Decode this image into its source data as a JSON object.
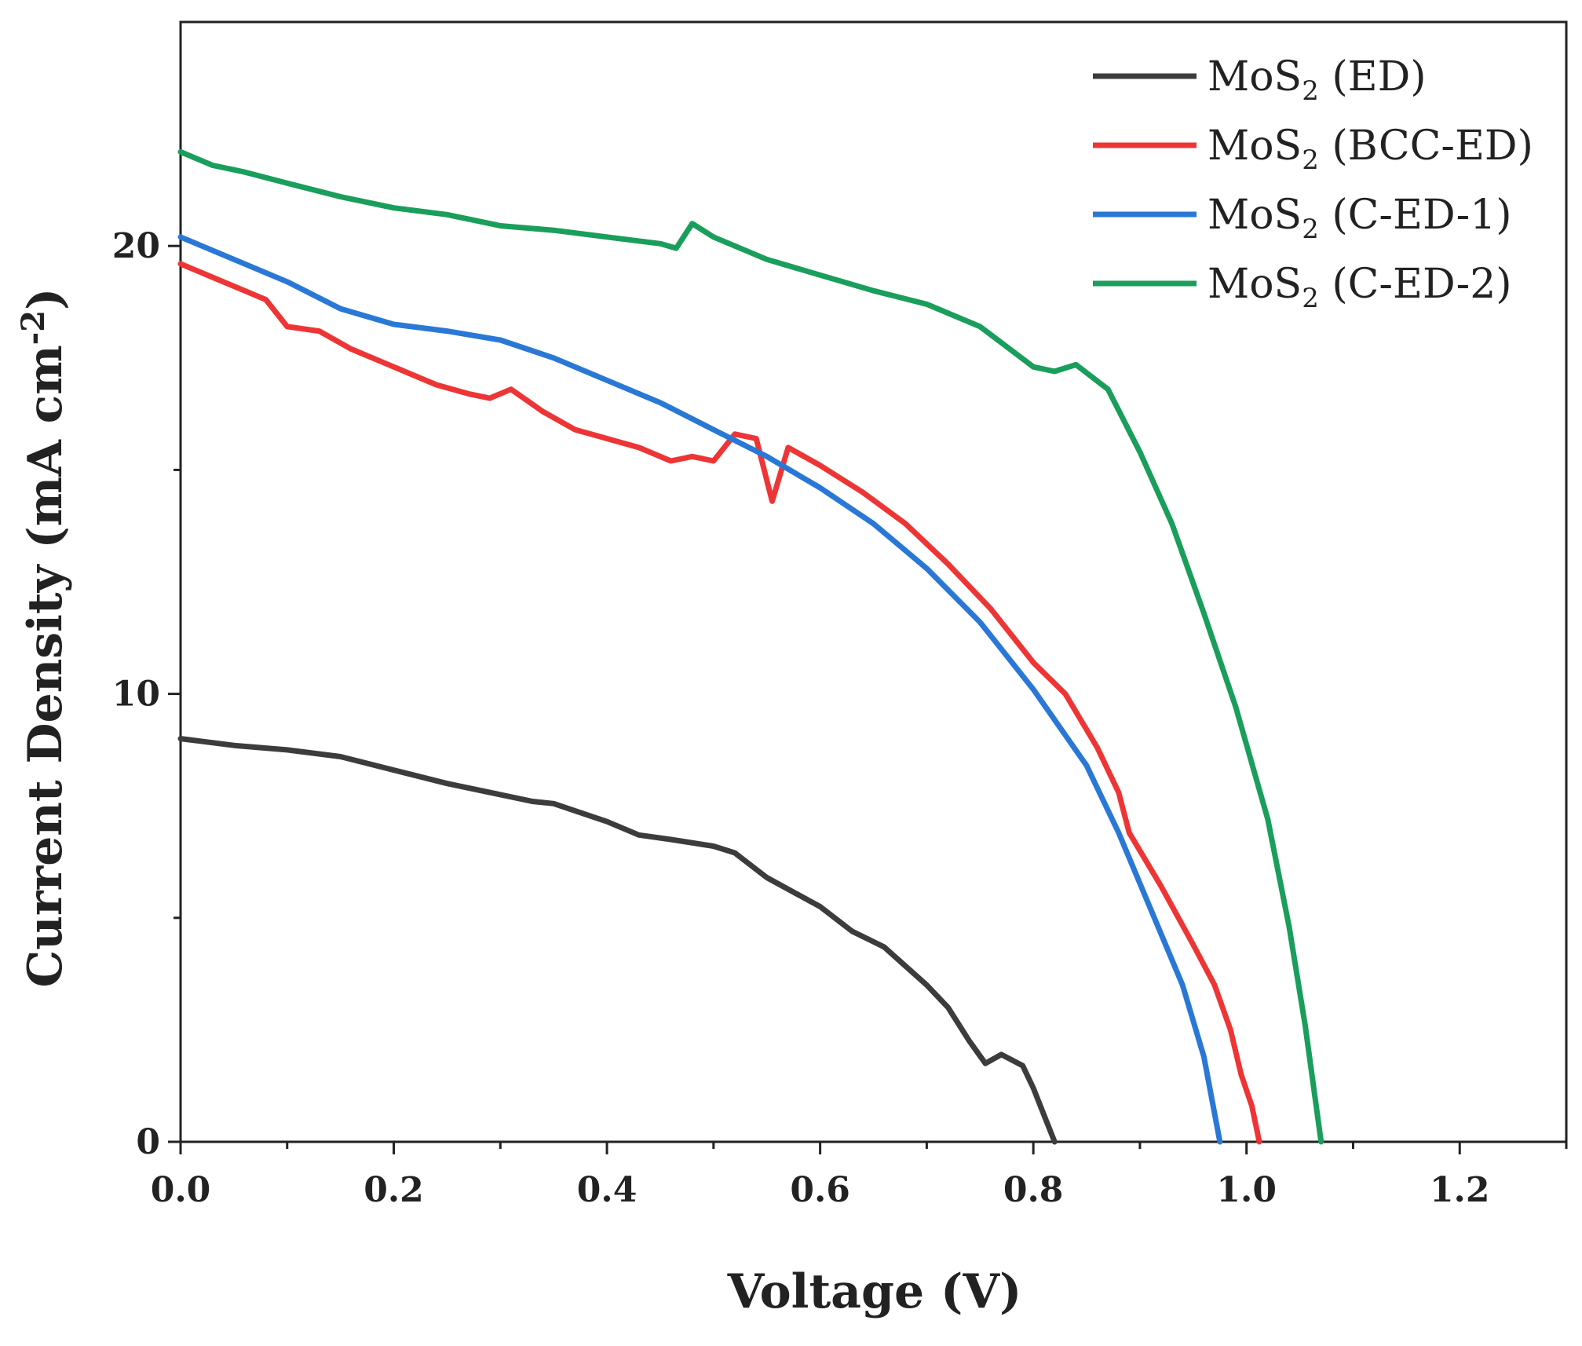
{
  "chart_data": {
    "type": "line",
    "title": "",
    "xlabel": "Voltage (V)",
    "ylabel": "Current Density (mA cm",
    "ylabel_sup": "-2",
    "ylabel_close": ")",
    "xlim": [
      0,
      1.3
    ],
    "ylim": [
      0,
      25
    ],
    "x_ticks": [
      0.0,
      0.2,
      0.4,
      0.6,
      0.8,
      1.0,
      1.2
    ],
    "x_tick_labels": [
      "0.0",
      "0.2",
      "0.4",
      "0.6",
      "0.8",
      "1.0",
      "1.2"
    ],
    "x_minor_ticks": [
      0.1,
      0.3,
      0.5,
      0.7,
      0.9,
      1.1,
      1.3
    ],
    "y_ticks": [
      0,
      10,
      20
    ],
    "y_tick_labels": [
      "0",
      "10",
      "20"
    ],
    "y_minor_ticks": [
      5,
      15
    ],
    "grid": false,
    "legend_position": "top-right",
    "series": [
      {
        "name": "MoS",
        "name_sub": "2",
        "name_suffix": " (ED)",
        "color": "#3c3c3c",
        "points": [
          [
            0.0,
            9.0
          ],
          [
            0.05,
            8.85
          ],
          [
            0.1,
            8.75
          ],
          [
            0.15,
            8.6
          ],
          [
            0.2,
            8.3
          ],
          [
            0.25,
            8.0
          ],
          [
            0.3,
            7.75
          ],
          [
            0.33,
            7.6
          ],
          [
            0.35,
            7.55
          ],
          [
            0.4,
            7.15
          ],
          [
            0.43,
            6.85
          ],
          [
            0.46,
            6.75
          ],
          [
            0.5,
            6.6
          ],
          [
            0.52,
            6.45
          ],
          [
            0.55,
            5.9
          ],
          [
            0.6,
            5.25
          ],
          [
            0.63,
            4.7
          ],
          [
            0.66,
            4.35
          ],
          [
            0.7,
            3.5
          ],
          [
            0.72,
            3.0
          ],
          [
            0.74,
            2.25
          ],
          [
            0.755,
            1.75
          ],
          [
            0.77,
            1.95
          ],
          [
            0.79,
            1.7
          ],
          [
            0.8,
            1.2
          ],
          [
            0.81,
            0.6
          ],
          [
            0.82,
            0.0
          ]
        ]
      },
      {
        "name": "MoS",
        "name_sub": "2",
        "name_suffix": " (BCC-ED)",
        "color": "#ee3535",
        "points": [
          [
            0.0,
            19.6
          ],
          [
            0.03,
            19.3
          ],
          [
            0.06,
            19.0
          ],
          [
            0.08,
            18.8
          ],
          [
            0.1,
            18.2
          ],
          [
            0.13,
            18.1
          ],
          [
            0.16,
            17.7
          ],
          [
            0.2,
            17.3
          ],
          [
            0.24,
            16.9
          ],
          [
            0.27,
            16.7
          ],
          [
            0.29,
            16.6
          ],
          [
            0.31,
            16.8
          ],
          [
            0.34,
            16.3
          ],
          [
            0.37,
            15.9
          ],
          [
            0.4,
            15.7
          ],
          [
            0.43,
            15.5
          ],
          [
            0.46,
            15.2
          ],
          [
            0.48,
            15.3
          ],
          [
            0.5,
            15.2
          ],
          [
            0.52,
            15.8
          ],
          [
            0.54,
            15.7
          ],
          [
            0.555,
            14.3
          ],
          [
            0.57,
            15.5
          ],
          [
            0.6,
            15.1
          ],
          [
            0.64,
            14.5
          ],
          [
            0.68,
            13.8
          ],
          [
            0.72,
            12.9
          ],
          [
            0.76,
            11.9
          ],
          [
            0.8,
            10.7
          ],
          [
            0.83,
            10.0
          ],
          [
            0.86,
            8.8
          ],
          [
            0.88,
            7.8
          ],
          [
            0.89,
            6.9
          ],
          [
            0.9,
            6.5
          ],
          [
            0.92,
            5.7
          ],
          [
            0.95,
            4.4
          ],
          [
            0.97,
            3.5
          ],
          [
            0.985,
            2.5
          ],
          [
            0.995,
            1.5
          ],
          [
            1.005,
            0.8
          ],
          [
            1.012,
            0.0
          ]
        ]
      },
      {
        "name": "MoS",
        "name_sub": "2",
        "name_suffix": " (C-ED-1)",
        "color": "#2a78d6",
        "points": [
          [
            0.0,
            20.2
          ],
          [
            0.05,
            19.7
          ],
          [
            0.1,
            19.2
          ],
          [
            0.15,
            18.6
          ],
          [
            0.2,
            18.25
          ],
          [
            0.25,
            18.1
          ],
          [
            0.3,
            17.9
          ],
          [
            0.35,
            17.5
          ],
          [
            0.4,
            17.0
          ],
          [
            0.45,
            16.5
          ],
          [
            0.5,
            15.9
          ],
          [
            0.55,
            15.3
          ],
          [
            0.6,
            14.6
          ],
          [
            0.65,
            13.8
          ],
          [
            0.7,
            12.8
          ],
          [
            0.75,
            11.6
          ],
          [
            0.8,
            10.1
          ],
          [
            0.85,
            8.4
          ],
          [
            0.88,
            6.9
          ],
          [
            0.91,
            5.2
          ],
          [
            0.94,
            3.5
          ],
          [
            0.96,
            1.9
          ],
          [
            0.975,
            0.0
          ]
        ]
      },
      {
        "name": "MoS",
        "name_sub": "2",
        "name_suffix": " (C-ED-2)",
        "color": "#1a9e5c",
        "points": [
          [
            0.0,
            22.1
          ],
          [
            0.03,
            21.8
          ],
          [
            0.06,
            21.65
          ],
          [
            0.1,
            21.4
          ],
          [
            0.15,
            21.1
          ],
          [
            0.2,
            20.85
          ],
          [
            0.25,
            20.7
          ],
          [
            0.3,
            20.45
          ],
          [
            0.35,
            20.35
          ],
          [
            0.4,
            20.2
          ],
          [
            0.45,
            20.05
          ],
          [
            0.465,
            19.95
          ],
          [
            0.48,
            20.5
          ],
          [
            0.5,
            20.2
          ],
          [
            0.55,
            19.7
          ],
          [
            0.6,
            19.35
          ],
          [
            0.65,
            19.0
          ],
          [
            0.7,
            18.7
          ],
          [
            0.75,
            18.2
          ],
          [
            0.8,
            17.3
          ],
          [
            0.82,
            17.2
          ],
          [
            0.84,
            17.35
          ],
          [
            0.87,
            16.8
          ],
          [
            0.9,
            15.4
          ],
          [
            0.93,
            13.8
          ],
          [
            0.96,
            11.8
          ],
          [
            0.99,
            9.7
          ],
          [
            1.02,
            7.2
          ],
          [
            1.04,
            4.8
          ],
          [
            1.055,
            2.6
          ],
          [
            1.07,
            0.0
          ]
        ]
      }
    ]
  }
}
